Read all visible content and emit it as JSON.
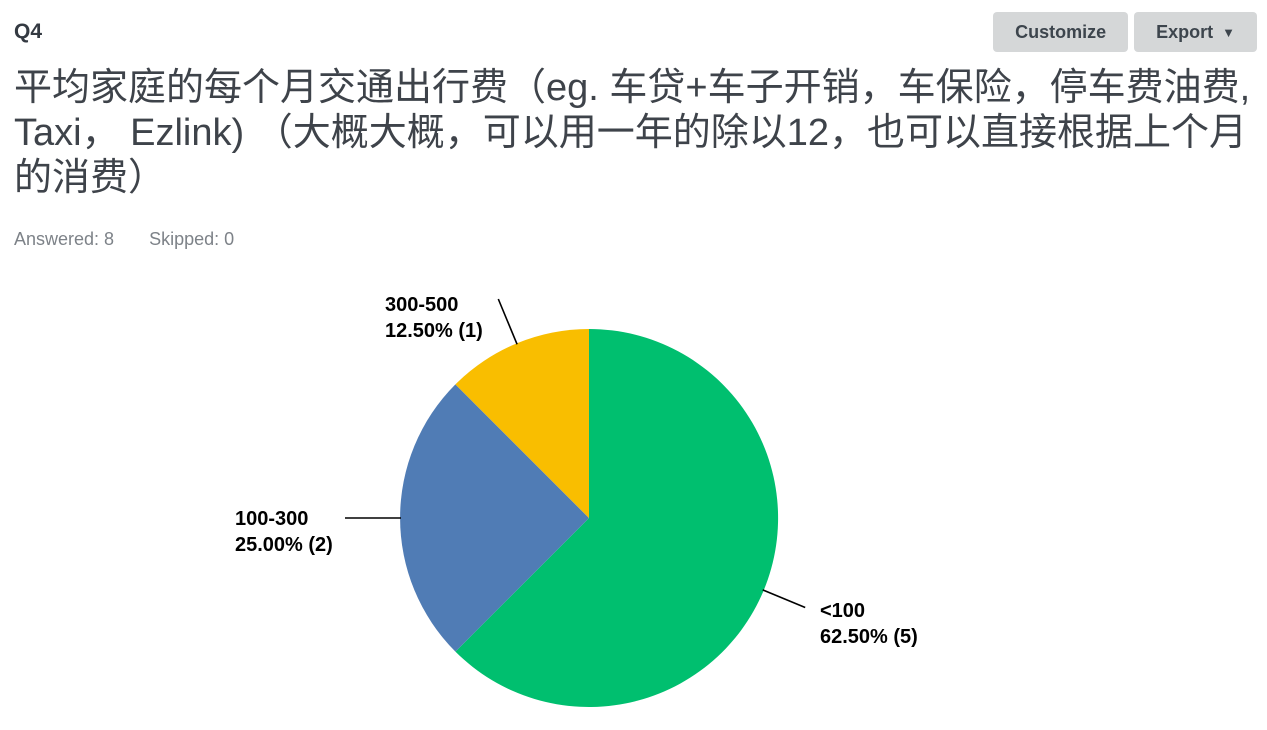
{
  "header": {
    "question_number": "Q4",
    "customize_label": "Customize",
    "export_label": "Export",
    "export_caret": "▼"
  },
  "question": {
    "title": "平均家庭的每个月交通出行费（eg. 车贷+车子开销，车保险，停车费油费, Taxi， Ezlink) （大概大概，可以用一年的除以12，也可以直接根据上个月的消费）",
    "answered_text": "Answered: 8",
    "skipped_text": "Skipped: 0"
  },
  "chart_data": {
    "type": "pie",
    "title": "",
    "direction": "clockwise",
    "start_angle_deg": 0,
    "total_responses": 8,
    "slices": [
      {
        "label": "<100",
        "percent": 62.5,
        "percent_text": "62.50%",
        "count": 5,
        "color": "#00BF6F"
      },
      {
        "label": "100-300",
        "percent": 25.0,
        "percent_text": "25.00%",
        "count": 2,
        "color": "#507CB5"
      },
      {
        "label": "300-500",
        "percent": 12.5,
        "percent_text": "12.50%",
        "count": 1,
        "color": "#F9BE00"
      }
    ],
    "leader_line_color": "#000000"
  }
}
